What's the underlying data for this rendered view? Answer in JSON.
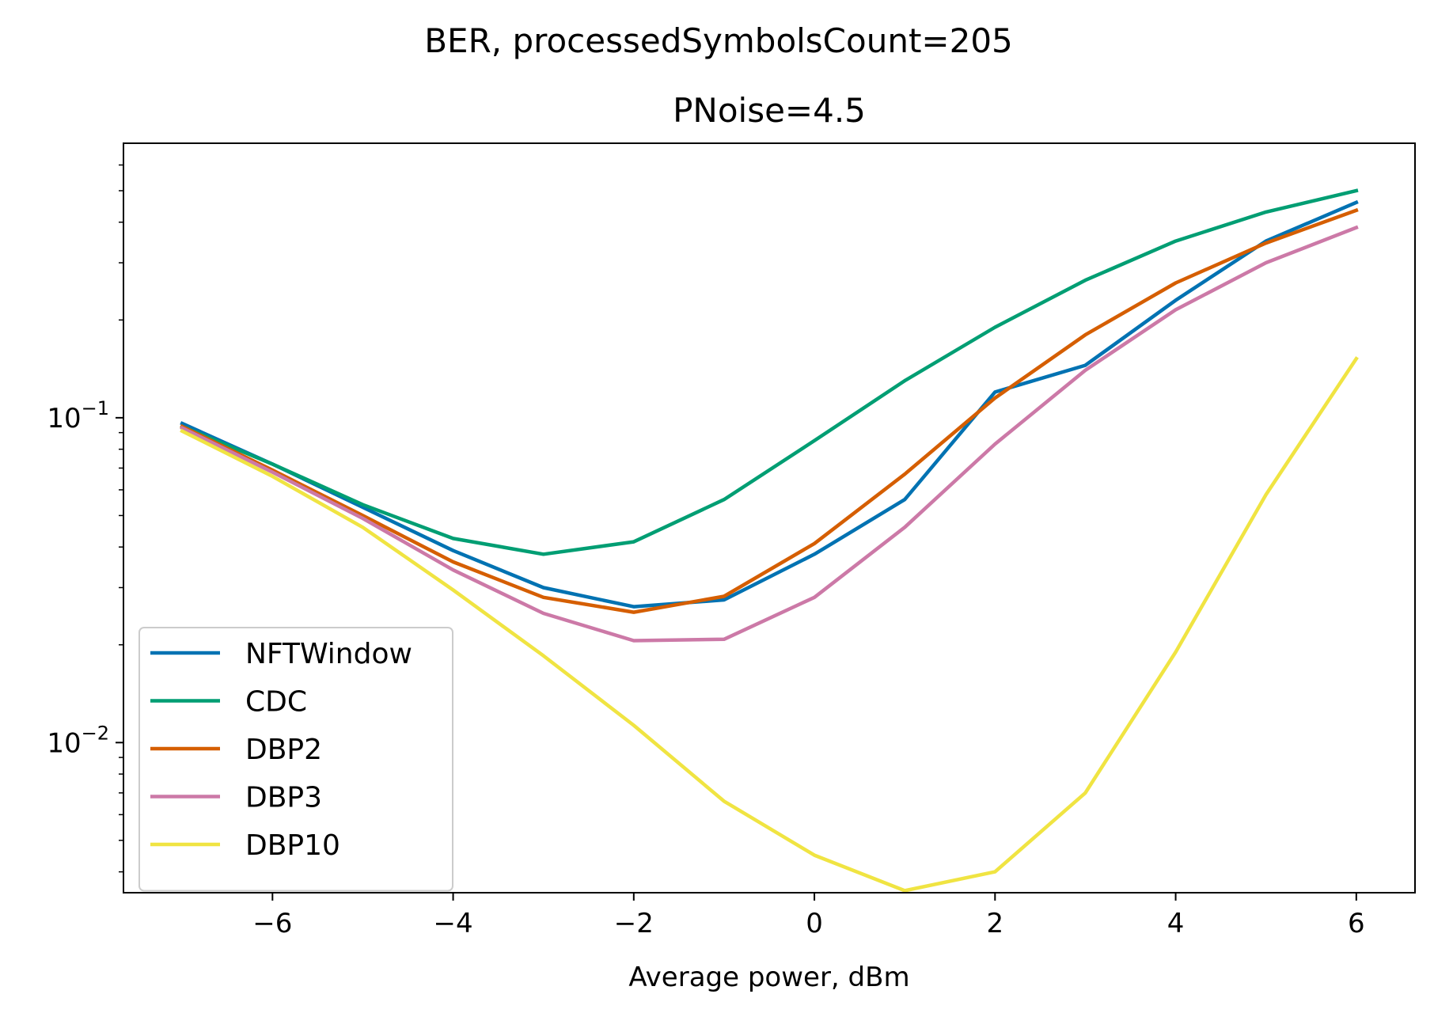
{
  "chart_data": {
    "type": "line",
    "suptitle": "BER, processedSymbolsCount=205",
    "title": "PNoise=4.5",
    "xlabel": "Average power, dBm",
    "ylabel": "",
    "yscale": "log",
    "xlim": [
      -7.65,
      6.65
    ],
    "ylim": [
      0.00345,
      0.7
    ],
    "xticks": [
      -6,
      -4,
      -2,
      0,
      2,
      4,
      6
    ],
    "xtick_labels": [
      "−6",
      "−4",
      "−2",
      "0",
      "2",
      "4",
      "6"
    ],
    "yticks": [
      0.1,
      0.01
    ],
    "ytick_labels": [
      {
        "base": "10",
        "exp": "−1"
      },
      {
        "base": "10",
        "exp": "−2"
      }
    ],
    "grid": false,
    "legend": "lower-left",
    "x": [
      -7,
      -6,
      -5,
      -4,
      -3,
      -2,
      -1,
      0,
      1,
      2,
      3,
      4,
      5,
      6
    ],
    "series": [
      {
        "name": "NFTWindow",
        "color": "#0072b2",
        "values": [
          0.096,
          0.072,
          0.053,
          0.039,
          0.03,
          0.0262,
          0.0275,
          0.038,
          0.056,
          0.12,
          0.145,
          0.23,
          0.35,
          0.46
        ]
      },
      {
        "name": "CDC",
        "color": "#009e73",
        "values": [
          0.094,
          0.072,
          0.054,
          0.0425,
          0.038,
          0.0415,
          0.056,
          0.085,
          0.13,
          0.19,
          0.265,
          0.35,
          0.43,
          0.5
        ]
      },
      {
        "name": "DBP2",
        "color": "#d55e00",
        "values": [
          0.094,
          0.069,
          0.05,
          0.036,
          0.028,
          0.0252,
          0.0282,
          0.041,
          0.067,
          0.115,
          0.18,
          0.26,
          0.345,
          0.435
        ]
      },
      {
        "name": "DBP3",
        "color": "#cc79a7",
        "values": [
          0.093,
          0.068,
          0.049,
          0.034,
          0.025,
          0.0206,
          0.0208,
          0.028,
          0.046,
          0.083,
          0.14,
          0.215,
          0.3,
          0.385
        ]
      },
      {
        "name": "DBP10",
        "color": "#f0e442",
        "values": [
          0.091,
          0.066,
          0.046,
          0.0295,
          0.0185,
          0.0113,
          0.0066,
          0.0045,
          0.0035,
          0.004,
          0.007,
          0.019,
          0.058,
          0.152
        ]
      }
    ]
  }
}
